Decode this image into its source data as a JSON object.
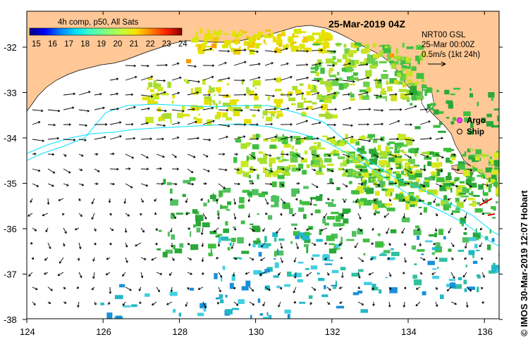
{
  "title": "25-Mar-2019 04Z",
  "colorbar": {
    "label": "4h comp, p50, All Sats",
    "ticks": [
      "15",
      "16",
      "17",
      "18",
      "19",
      "20",
      "21",
      "22",
      "23",
      "24"
    ],
    "colors": [
      "#00007f",
      "#0000ff",
      "#007fff",
      "#00dfff",
      "#40ffbf",
      "#7fff7f",
      "#bfff40",
      "#ffdf00",
      "#ff7f00",
      "#ff2000",
      "#7f0000"
    ]
  },
  "current_info": {
    "line1": "NRT00 GSL",
    "line2": "25-Mar 00:00Z",
    "line3": "0.5m/s (1kt 24h)"
  },
  "legend": {
    "argo": "Argo",
    "ship": "Ship"
  },
  "axes": {
    "lon_labels": [
      "124",
      "126",
      "128",
      "130",
      "132",
      "134",
      "136"
    ],
    "lat_labels": [
      "-32",
      "-33",
      "-34",
      "-35",
      "-36",
      "-37",
      "-38"
    ]
  },
  "credit": "© IMOS 30-Mar-2019 12:07 Hobart",
  "colors": {
    "land": "#ffc896",
    "ocean": "#ffffff",
    "contour": "#00e0ff",
    "ship_track": "#e00000"
  }
}
